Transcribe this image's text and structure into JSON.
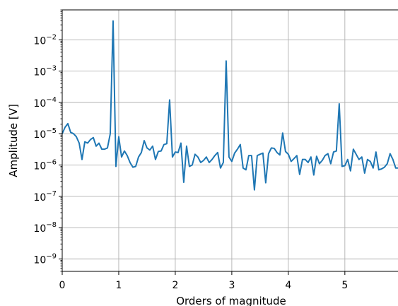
{
  "chart_data": {
    "type": "line",
    "xlabel": "Orders of magnitude",
    "ylabel": "Amplitude [V]",
    "xlim": [
      0,
      5.94
    ],
    "ylim": [
      4e-10,
      0.09
    ],
    "yscale": "log",
    "grid": true,
    "x_ticks": [
      0,
      1,
      2,
      3,
      4,
      5
    ],
    "x_tick_labels": [
      "0",
      "1",
      "2",
      "3",
      "4",
      "5"
    ],
    "y_ticks": [
      1e-09,
      1e-08,
      1e-07,
      1e-06,
      1e-05,
      0.0001,
      0.001,
      0.01
    ],
    "y_tick_exponents": [
      "−9",
      "−8",
      "−7",
      "−6",
      "−5",
      "−4",
      "−3",
      "−2"
    ],
    "y_tick_base": "10",
    "line_color": "#1f77b4",
    "series": [
      {
        "x": [
          0,
          0.05,
          0.1,
          0.15,
          0.2,
          0.25,
          0.3,
          0.35,
          0.4,
          0.45,
          0.5,
          0.55,
          0.6,
          0.65,
          0.7,
          0.75,
          0.8,
          0.85,
          0.9,
          0.95,
          1.0,
          1.05,
          1.1,
          1.15,
          1.2,
          1.25,
          1.3,
          1.35,
          1.4,
          1.45,
          1.5,
          1.55,
          1.6,
          1.65,
          1.7,
          1.75,
          1.8,
          1.85,
          1.9,
          1.95,
          2.0,
          2.05,
          2.1,
          2.15,
          2.2,
          2.25,
          2.3,
          2.35,
          2.4,
          2.45,
          2.5,
          2.55,
          2.6,
          2.65,
          2.7,
          2.75,
          2.8,
          2.85,
          2.9,
          2.95,
          3.0,
          3.05,
          3.1,
          3.15,
          3.2,
          3.25,
          3.3,
          3.35,
          3.4,
          3.45,
          3.5,
          3.55,
          3.6,
          3.65,
          3.7,
          3.75,
          3.8,
          3.85,
          3.9,
          3.95,
          4.0,
          4.05,
          4.1,
          4.15,
          4.2,
          4.25,
          4.3,
          4.35,
          4.4,
          4.45,
          4.5,
          4.55,
          4.6,
          4.65,
          4.7,
          4.75,
          4.8,
          4.85,
          4.9,
          4.95,
          5.0,
          5.05,
          5.1,
          5.15,
          5.2,
          5.25,
          5.3,
          5.35,
          5.4,
          5.45,
          5.5,
          5.55,
          5.6,
          5.65,
          5.7,
          5.75,
          5.8,
          5.85,
          5.9,
          5.94
        ],
        "values": [
          1e-05,
          1.6e-05,
          2.1e-05,
          1.1e-05,
          1e-05,
          8e-06,
          5e-06,
          1.5e-06,
          5.5e-06,
          5e-06,
          6.5e-06,
          7.5e-06,
          4e-06,
          5e-06,
          3.2e-06,
          3.2e-06,
          3.5e-06,
          1e-05,
          0.04,
          9e-07,
          8e-06,
          1.8e-06,
          2.8e-06,
          2e-06,
          1.2e-06,
          8.5e-07,
          9e-07,
          1.8e-06,
          2.5e-06,
          6e-06,
          3.5e-06,
          3e-06,
          4e-06,
          1.5e-06,
          2.7e-06,
          2.8e-06,
          4.5e-06,
          4.8e-06,
          0.00012,
          1.8e-06,
          2.6e-06,
          2.5e-06,
          5e-06,
          2.8e-07,
          4e-06,
          9e-07,
          1e-06,
          2.2e-06,
          1.8e-06,
          1.2e-06,
          1.4e-06,
          1.8e-06,
          1.2e-06,
          1.5e-06,
          2e-06,
          2.5e-06,
          8e-07,
          1.2e-06,
          0.0021,
          1.8e-06,
          1.3e-06,
          2.4e-06,
          3.2e-06,
          4.5e-06,
          8e-07,
          7e-07,
          2e-06,
          2e-06,
          1.6e-07,
          2e-06,
          2.2e-06,
          2.4e-06,
          2.7e-07,
          2.3e-06,
          3.5e-06,
          3.4e-06,
          2.5e-06,
          2.1e-06,
          1.05e-05,
          2.7e-06,
          2.2e-06,
          1.3e-06,
          1.6e-06,
          2e-06,
          5e-07,
          1.5e-06,
          1.5e-06,
          1.2e-06,
          1.8e-06,
          4.8e-07,
          1.9e-06,
          1.1e-06,
          1.4e-06,
          2e-06,
          2.3e-06,
          1.1e-06,
          2.6e-06,
          2.8e-06,
          9e-05,
          9e-07,
          9.5e-07,
          1.5e-06,
          6.5e-07,
          3.2e-06,
          2.2e-06,
          1.5e-06,
          1.8e-06,
          5.5e-07,
          1.5e-06,
          1.3e-06,
          8e-07,
          2.6e-06,
          7e-07,
          7.5e-07,
          8.5e-07,
          1.1e-06,
          2.3e-06,
          1.5e-06,
          8e-07,
          8e-07
        ]
      }
    ]
  }
}
